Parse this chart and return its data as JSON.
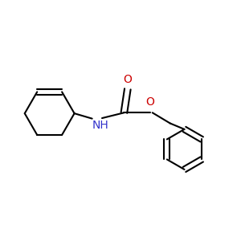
{
  "bg_color": "#FFFFFF",
  "bond_color": "#000000",
  "N_color": "#3333CC",
  "O_color": "#CC0000",
  "bond_width": 1.5,
  "dbo": 0.012,
  "font_size": 10,
  "fig_size": [
    3.0,
    3.0
  ],
  "dpi": 100,
  "xlim": [
    0,
    10
  ],
  "ylim": [
    0,
    10
  ]
}
